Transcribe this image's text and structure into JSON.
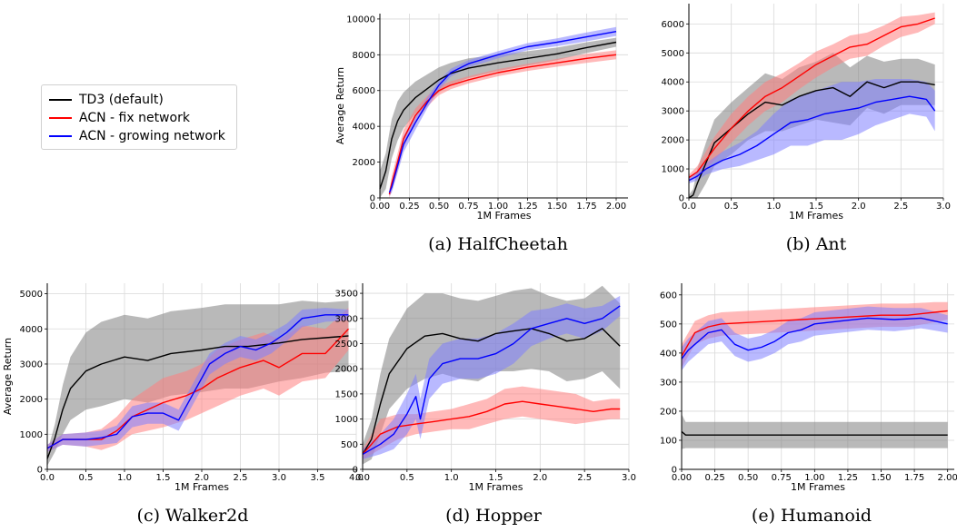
{
  "legend": {
    "entries": [
      {
        "label": "TD3 (default)",
        "color": "#000000"
      },
      {
        "label": "ACN - fix network",
        "color": "#ff0000"
      },
      {
        "label": "ACN - growing network",
        "color": "#0000ff"
      }
    ]
  },
  "colors": {
    "td3": "#000000",
    "acn_fix": "#ff0000",
    "acn_grow": "#0000ff",
    "td3_band": "#808080",
    "fix_band": "#ff8080",
    "grow_band": "#8080ff"
  },
  "chart_data": [
    {
      "id": "halfcheetah",
      "type": "line",
      "caption": "(a) HalfCheetah",
      "xlabel": "1M Frames",
      "ylabel": "Average Return",
      "xlim": [
        0,
        2.1
      ],
      "ylim": [
        0,
        10300
      ],
      "xticks": [
        0,
        0.25,
        0.5,
        0.75,
        1.0,
        1.25,
        1.5,
        1.75,
        2.0
      ],
      "xtick_labels": [
        "0.00",
        "0.25",
        "0.50",
        "0.75",
        "1.00",
        "1.25",
        "1.50",
        "1.75",
        "2.00"
      ],
      "yticks": [
        0,
        2000,
        4000,
        6000,
        8000,
        10000
      ],
      "ytick_labels": [
        "0",
        "2000",
        "4000",
        "6000",
        "8000",
        "10000"
      ],
      "grid": true,
      "series": [
        {
          "name": "TD3 (default)",
          "color": "#000000",
          "x": [
            0.0,
            0.05,
            0.1,
            0.15,
            0.2,
            0.3,
            0.4,
            0.5,
            0.6,
            0.75,
            1.0,
            1.25,
            1.5,
            1.75,
            2.0
          ],
          "y": [
            500,
            1500,
            3300,
            4300,
            4900,
            5600,
            6100,
            6600,
            6950,
            7250,
            7550,
            7800,
            8050,
            8400,
            8700
          ],
          "band": [
            1000,
            1000,
            1100,
            1100,
            1000,
            900,
            800,
            700,
            600,
            550,
            450,
            400,
            350,
            300,
            250
          ]
        },
        {
          "name": "ACN - fix network",
          "color": "#ff0000",
          "x": [
            0.08,
            0.1,
            0.15,
            0.2,
            0.3,
            0.4,
            0.5,
            0.6,
            0.75,
            1.0,
            1.25,
            1.5,
            1.75,
            2.0
          ],
          "y": [
            200,
            800,
            2000,
            3300,
            4600,
            5400,
            6000,
            6300,
            6600,
            7000,
            7300,
            7550,
            7800,
            8000
          ],
          "band": [
            200,
            400,
            500,
            500,
            400,
            300,
            250,
            220,
            200,
            200,
            200,
            220,
            250,
            250
          ]
        },
        {
          "name": "ACN - growing network",
          "color": "#0000ff",
          "x": [
            0.08,
            0.1,
            0.15,
            0.2,
            0.3,
            0.4,
            0.5,
            0.6,
            0.75,
            1.0,
            1.25,
            1.5,
            1.75,
            2.0
          ],
          "y": [
            300,
            600,
            1800,
            3000,
            4200,
            5300,
            6300,
            7000,
            7500,
            8000,
            8450,
            8700,
            9000,
            9300
          ],
          "band": [
            200,
            300,
            400,
            450,
            400,
            300,
            250,
            220,
            200,
            200,
            200,
            220,
            250,
            250
          ]
        }
      ]
    },
    {
      "id": "ant",
      "type": "line",
      "caption": "(b) Ant",
      "xlabel": "1M Frames",
      "ylabel": "",
      "xlim": [
        0,
        3.0
      ],
      "ylim": [
        0,
        6700
      ],
      "xticks": [
        0,
        0.5,
        1.0,
        1.5,
        2.0,
        2.5,
        3.0
      ],
      "xtick_labels": [
        "0.0",
        "0.5",
        "1.0",
        "1.5",
        "2.0",
        "2.5",
        "3.0"
      ],
      "yticks": [
        0,
        1000,
        2000,
        3000,
        4000,
        5000,
        6000
      ],
      "ytick_labels": [
        "0",
        "1000",
        "2000",
        "3000",
        "4000",
        "5000",
        "6000"
      ],
      "grid": true,
      "series": [
        {
          "name": "TD3 (default)",
          "color": "#000000",
          "x": [
            0.0,
            0.05,
            0.1,
            0.2,
            0.3,
            0.5,
            0.7,
            0.9,
            1.1,
            1.3,
            1.5,
            1.7,
            1.9,
            2.1,
            2.3,
            2.5,
            2.7,
            2.9
          ],
          "y": [
            0,
            100,
            500,
            1200,
            1900,
            2400,
            2900,
            3300,
            3200,
            3500,
            3700,
            3800,
            3500,
            4000,
            3800,
            4000,
            4000,
            3900
          ],
          "band": [
            100,
            200,
            500,
            700,
            800,
            900,
            900,
            1000,
            900,
            1000,
            1000,
            1200,
            1000,
            900,
            900,
            800,
            800,
            700
          ]
        },
        {
          "name": "ACN - fix network",
          "color": "#ff0000",
          "x": [
            0.0,
            0.1,
            0.2,
            0.3,
            0.5,
            0.7,
            0.9,
            1.1,
            1.3,
            1.5,
            1.7,
            1.9,
            2.1,
            2.3,
            2.5,
            2.7,
            2.9
          ],
          "y": [
            700,
            900,
            1300,
            1700,
            2400,
            3000,
            3500,
            3800,
            4200,
            4600,
            4900,
            5200,
            5300,
            5600,
            5900,
            6000,
            6200
          ],
          "band": [
            100,
            200,
            300,
            400,
            500,
            500,
            500,
            500,
            450,
            450,
            400,
            400,
            400,
            350,
            350,
            300,
            200
          ]
        },
        {
          "name": "ACN - growing network",
          "color": "#0000ff",
          "x": [
            0.0,
            0.1,
            0.2,
            0.4,
            0.6,
            0.8,
            1.0,
            1.2,
            1.4,
            1.6,
            1.8,
            2.0,
            2.2,
            2.4,
            2.6,
            2.8,
            2.9
          ],
          "y": [
            600,
            750,
            1000,
            1300,
            1500,
            1800,
            2200,
            2600,
            2700,
            2900,
            3000,
            3100,
            3300,
            3400,
            3500,
            3400,
            3000
          ],
          "band": [
            100,
            150,
            200,
            300,
            400,
            500,
            700,
            800,
            900,
            900,
            1000,
            900,
            800,
            700,
            600,
            600,
            700
          ]
        }
      ]
    },
    {
      "id": "walker2d",
      "type": "line",
      "caption": "(c) Walker2d",
      "xlabel": "1M Frames",
      "ylabel": "Average Return",
      "xlim": [
        0,
        4.0
      ],
      "ylim": [
        0,
        5300
      ],
      "xticks": [
        0,
        0.5,
        1.0,
        1.5,
        2.0,
        2.5,
        3.0,
        3.5,
        4.0
      ],
      "xtick_labels": [
        "0.0",
        "0.5",
        "1.0",
        "1.5",
        "2.0",
        "2.5",
        "3.0",
        "3.5",
        "4.0"
      ],
      "yticks": [
        0,
        1000,
        2000,
        3000,
        4000,
        5000
      ],
      "ytick_labels": [
        "0",
        "1000",
        "2000",
        "3000",
        "4000",
        "5000"
      ],
      "grid": true,
      "series": [
        {
          "name": "TD3 (default)",
          "color": "#000000",
          "x": [
            0.0,
            0.1,
            0.2,
            0.3,
            0.5,
            0.7,
            1.0,
            1.3,
            1.6,
            2.0,
            2.3,
            2.6,
            3.0,
            3.3,
            3.6,
            3.9
          ],
          "y": [
            300,
            900,
            1700,
            2300,
            2800,
            3000,
            3200,
            3100,
            3300,
            3400,
            3500,
            3500,
            3600,
            3700,
            3750,
            3800
          ],
          "band": [
            200,
            400,
            700,
            900,
            1100,
            1200,
            1200,
            1200,
            1200,
            1200,
            1200,
            1200,
            1100,
            1100,
            1000,
            1000
          ]
        },
        {
          "name": "ACN - fix network",
          "color": "#ff0000",
          "x": [
            0.0,
            0.2,
            0.5,
            0.7,
            0.9,
            1.1,
            1.3,
            1.5,
            1.8,
            2.0,
            2.2,
            2.5,
            2.8,
            3.0,
            3.3,
            3.6,
            3.9
          ],
          "y": [
            600,
            850,
            850,
            850,
            1100,
            1500,
            1700,
            1900,
            2100,
            2300,
            2600,
            2900,
            3100,
            2900,
            3300,
            3300,
            4000
          ],
          "band": [
            100,
            150,
            200,
            300,
            400,
            500,
            600,
            700,
            700,
            700,
            800,
            800,
            800,
            800,
            800,
            700,
            600
          ]
        },
        {
          "name": "ACN - growing network",
          "color": "#0000ff",
          "x": [
            0.0,
            0.2,
            0.5,
            0.7,
            0.9,
            1.1,
            1.3,
            1.5,
            1.7,
            1.9,
            2.1,
            2.3,
            2.5,
            2.7,
            2.9,
            3.1,
            3.3,
            3.6,
            3.9
          ],
          "y": [
            600,
            850,
            850,
            900,
            1000,
            1500,
            1600,
            1600,
            1400,
            2200,
            3000,
            3300,
            3500,
            3400,
            3600,
            3900,
            4300,
            4400,
            4400
          ],
          "band": [
            100,
            150,
            200,
            200,
            250,
            300,
            300,
            300,
            300,
            300,
            300,
            300,
            300,
            300,
            300,
            250,
            250,
            200,
            150
          ]
        }
      ]
    },
    {
      "id": "hopper",
      "type": "line",
      "caption": "(d) Hopper",
      "xlabel": "1M Frames",
      "ylabel": "",
      "xlim": [
        0,
        3.0
      ],
      "ylim": [
        0,
        3700
      ],
      "xticks": [
        0,
        0.5,
        1.0,
        1.5,
        2.0,
        2.5,
        3.0
      ],
      "xtick_labels": [
        "0.0",
        "0.5",
        "1.0",
        "1.5",
        "2.0",
        "2.5",
        "3.0"
      ],
      "yticks": [
        0,
        500,
        1000,
        1500,
        2000,
        2500,
        3000,
        3500
      ],
      "ytick_labels": [
        "0",
        "500",
        "1000",
        "1500",
        "2000",
        "2500",
        "3000",
        "3500"
      ],
      "grid": true,
      "series": [
        {
          "name": "TD3 (default)",
          "color": "#000000",
          "x": [
            0.0,
            0.1,
            0.2,
            0.3,
            0.5,
            0.7,
            0.9,
            1.1,
            1.3,
            1.5,
            1.7,
            1.9,
            2.1,
            2.3,
            2.5,
            2.7,
            2.9
          ],
          "y": [
            300,
            600,
            1300,
            1900,
            2400,
            2650,
            2700,
            2600,
            2550,
            2700,
            2750,
            2800,
            2700,
            2550,
            2600,
            2800,
            2450
          ],
          "band": [
            200,
            400,
            600,
            700,
            800,
            850,
            800,
            800,
            800,
            750,
            800,
            800,
            750,
            800,
            800,
            850,
            850
          ]
        },
        {
          "name": "ACN - fix network",
          "color": "#ff0000",
          "x": [
            0.0,
            0.1,
            0.2,
            0.4,
            0.6,
            0.8,
            1.0,
            1.2,
            1.4,
            1.6,
            1.8,
            2.0,
            2.2,
            2.4,
            2.6,
            2.8,
            2.9
          ],
          "y": [
            300,
            500,
            700,
            850,
            900,
            950,
            1000,
            1050,
            1150,
            1300,
            1350,
            1300,
            1250,
            1200,
            1150,
            1200,
            1200
          ],
          "band": [
            100,
            200,
            300,
            250,
            200,
            200,
            200,
            250,
            250,
            300,
            300,
            300,
            300,
            300,
            200,
            200,
            200
          ]
        },
        {
          "name": "ACN - growing network",
          "color": "#0000ff",
          "x": [
            0.0,
            0.1,
            0.2,
            0.35,
            0.5,
            0.6,
            0.65,
            0.75,
            0.9,
            1.1,
            1.3,
            1.5,
            1.7,
            1.9,
            2.1,
            2.3,
            2.5,
            2.7,
            2.9
          ],
          "y": [
            300,
            400,
            500,
            700,
            1100,
            1450,
            1000,
            1800,
            2100,
            2200,
            2200,
            2300,
            2500,
            2800,
            2900,
            3000,
            2900,
            3000,
            3250
          ],
          "band": [
            100,
            150,
            200,
            300,
            400,
            450,
            400,
            400,
            400,
            400,
            400,
            400,
            400,
            350,
            300,
            300,
            300,
            250,
            200
          ]
        }
      ]
    },
    {
      "id": "humanoid",
      "type": "line",
      "caption": "(e) Humanoid",
      "xlabel": "1M Frames",
      "ylabel": "",
      "xlim": [
        0,
        2.05
      ],
      "ylim": [
        0,
        640
      ],
      "xticks": [
        0,
        0.25,
        0.5,
        0.75,
        1.0,
        1.25,
        1.5,
        1.75,
        2.0
      ],
      "xtick_labels": [
        "0.00",
        "0.25",
        "0.50",
        "0.75",
        "1.00",
        "1.25",
        "1.50",
        "1.75",
        "2.00"
      ],
      "yticks": [
        0,
        100,
        200,
        300,
        400,
        500,
        600
      ],
      "ytick_labels": [
        "0",
        "100",
        "200",
        "300",
        "400",
        "500",
        "600"
      ],
      "grid": true,
      "series": [
        {
          "name": "TD3 (default)",
          "color": "#000000",
          "x": [
            0.0,
            0.03,
            0.1,
            0.25,
            0.5,
            0.75,
            1.0,
            1.25,
            1.5,
            1.75,
            2.0
          ],
          "y": [
            130,
            118,
            118,
            118,
            118,
            118,
            118,
            118,
            118,
            118,
            118
          ],
          "band": [
            60,
            45,
            45,
            45,
            45,
            45,
            45,
            45,
            45,
            45,
            45
          ]
        },
        {
          "name": "ACN - fix network",
          "color": "#ff0000",
          "x": [
            0.0,
            0.05,
            0.1,
            0.2,
            0.3,
            0.5,
            0.7,
            0.9,
            1.1,
            1.3,
            1.5,
            1.7,
            1.9,
            2.0
          ],
          "y": [
            390,
            430,
            470,
            490,
            500,
            505,
            510,
            515,
            520,
            525,
            530,
            530,
            540,
            545
          ],
          "band": [
            40,
            40,
            40,
            40,
            40,
            40,
            40,
            40,
            40,
            40,
            40,
            40,
            35,
            30
          ]
        },
        {
          "name": "ACN - growing network",
          "color": "#0000ff",
          "x": [
            0.0,
            0.05,
            0.1,
            0.2,
            0.3,
            0.4,
            0.5,
            0.6,
            0.7,
            0.8,
            0.9,
            1.0,
            1.2,
            1.4,
            1.6,
            1.8,
            2.0
          ],
          "y": [
            380,
            410,
            430,
            470,
            480,
            430,
            410,
            420,
            440,
            470,
            480,
            500,
            510,
            520,
            515,
            520,
            500
          ],
          "band": [
            40,
            40,
            40,
            40,
            40,
            40,
            40,
            40,
            40,
            40,
            40,
            40,
            40,
            40,
            40,
            35,
            30
          ]
        }
      ]
    }
  ]
}
